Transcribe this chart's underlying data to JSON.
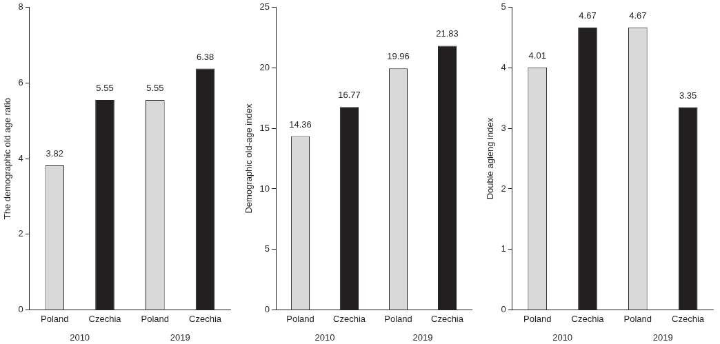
{
  "chart_data": [
    {
      "type": "bar",
      "ylabel": "The demographic old age ratio",
      "categories": [
        "Poland",
        "Czechia",
        "Poland",
        "Czechia"
      ],
      "values": [
        3.82,
        5.55,
        5.55,
        6.38
      ],
      "colors": [
        "#d9d9d9",
        "#231f20",
        "#d9d9d9",
        "#231f20"
      ],
      "ylim": [
        0,
        8
      ],
      "yticks": [
        0,
        2,
        4,
        6,
        8
      ],
      "data_labels": true,
      "grid": false,
      "legend": false,
      "annotations": [
        "2010",
        "2019"
      ]
    },
    {
      "type": "bar",
      "ylabel": "Demographic old-age index",
      "categories": [
        "Poland",
        "Czechia",
        "Poland",
        "Czechia"
      ],
      "values": [
        14.36,
        16.77,
        19.96,
        21.83
      ],
      "colors": [
        "#d9d9d9",
        "#231f20",
        "#d9d9d9",
        "#231f20"
      ],
      "ylim": [
        0,
        25
      ],
      "yticks": [
        0,
        5,
        10,
        15,
        20,
        25
      ],
      "data_labels": true,
      "grid": false,
      "legend": false,
      "annotations": [
        "2010",
        "2019"
      ]
    },
    {
      "type": "bar",
      "ylabel": "Double agieng index",
      "categories": [
        "Poland",
        "Czechia",
        "Poland",
        "Czechia"
      ],
      "values": [
        4.01,
        4.67,
        4.67,
        3.35
      ],
      "colors": [
        "#d9d9d9",
        "#231f20",
        "#d9d9d9",
        "#231f20"
      ],
      "ylim": [
        0,
        5
      ],
      "yticks": [
        0,
        1,
        2,
        3,
        4,
        5
      ],
      "data_labels": true,
      "grid": false,
      "legend": false,
      "annotations": [
        "2010",
        "2019"
      ]
    }
  ]
}
